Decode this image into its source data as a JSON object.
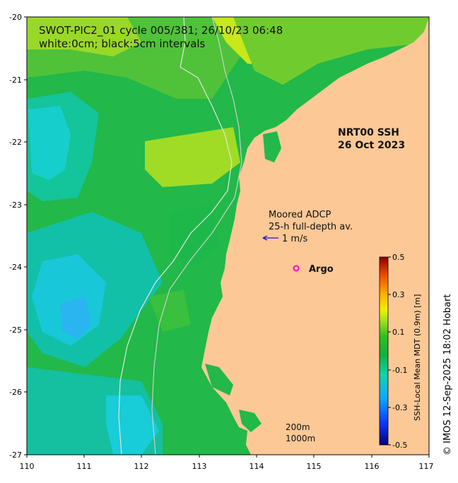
{
  "title": {
    "line1": "SWOT-PIC2_01 cycle 005/381; 26/10/23 06:48",
    "line2": "white:0cm; black:5cm intervals"
  },
  "product": {
    "name": "NRT00 SSH",
    "date": "26 Oct 2023"
  },
  "legend": {
    "adcp_line1": "Moored ADCP",
    "adcp_line2": "25-h full-depth av.",
    "scale_label": "1 m/s",
    "argo_label": "Argo",
    "contour_200": "200m",
    "contour_1000": "1000m"
  },
  "colorbar": {
    "label": "SSH-Local Mean MDT (0.9m) [m]",
    "ticks": [
      "0.5",
      "0.3",
      "0.1",
      "-0.1",
      "-0.3",
      "-0.5"
    ]
  },
  "credit": "© IMOS 12-Sep-2025 18:02 Hobart",
  "axes": {
    "x_ticks": [
      "110",
      "111",
      "112",
      "113",
      "114",
      "115",
      "116",
      "117"
    ],
    "y_ticks": [
      "-20",
      "-21",
      "-22",
      "-23",
      "-24",
      "-25",
      "-26",
      "-27"
    ]
  },
  "colors": {
    "land": "#fbc896",
    "accent_argo": "#ff00cc",
    "vector": "#1a1acc"
  }
}
